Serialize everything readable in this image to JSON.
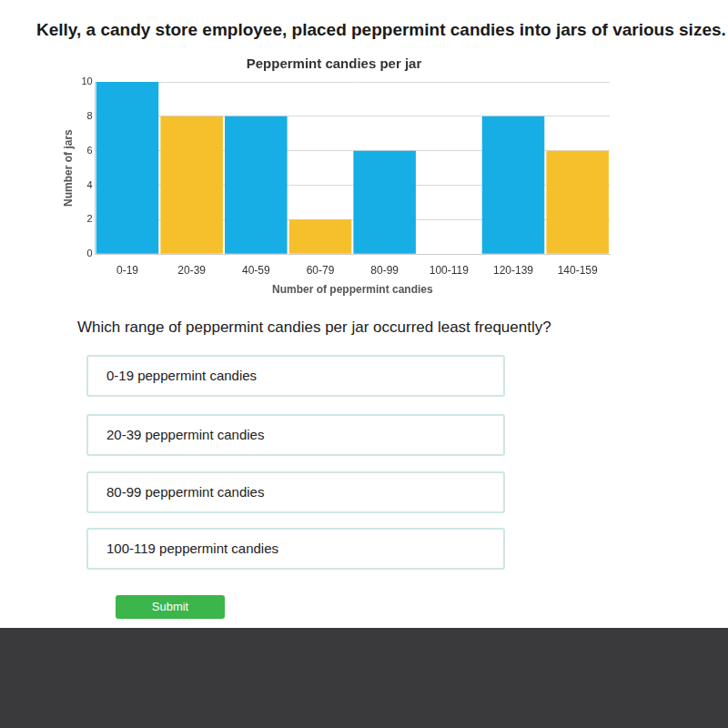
{
  "header": "Kelly, a candy store employee, placed peppermint candies into jars of various sizes.",
  "chart_data": {
    "type": "bar",
    "title": "Peppermint candies per jar",
    "x_label": "Number of peppermint candies",
    "y_label": "Number of jars",
    "categories": [
      "0-19",
      "20-39",
      "40-59",
      "60-79",
      "80-99",
      "100-119",
      "120-139",
      "140-159"
    ],
    "values": [
      10,
      8,
      8,
      2,
      6,
      0,
      8,
      6
    ],
    "colors": [
      "#17aee6",
      "#f6c02d",
      "#17aee6",
      "#f6c02d",
      "#17aee6",
      "#f6c02d",
      "#17aee6",
      "#f6c02d"
    ],
    "ylim": [
      0,
      10
    ],
    "yticks": [
      0,
      2,
      4,
      6,
      8,
      10
    ],
    "grid": true
  },
  "question": "Which range of peppermint candies per jar occurred least frequently?",
  "options": [
    "0-19 peppermint candies",
    "20-39 peppermint candies",
    "80-99 peppermint candies",
    "100-119 peppermint candies"
  ],
  "button": "Submit"
}
